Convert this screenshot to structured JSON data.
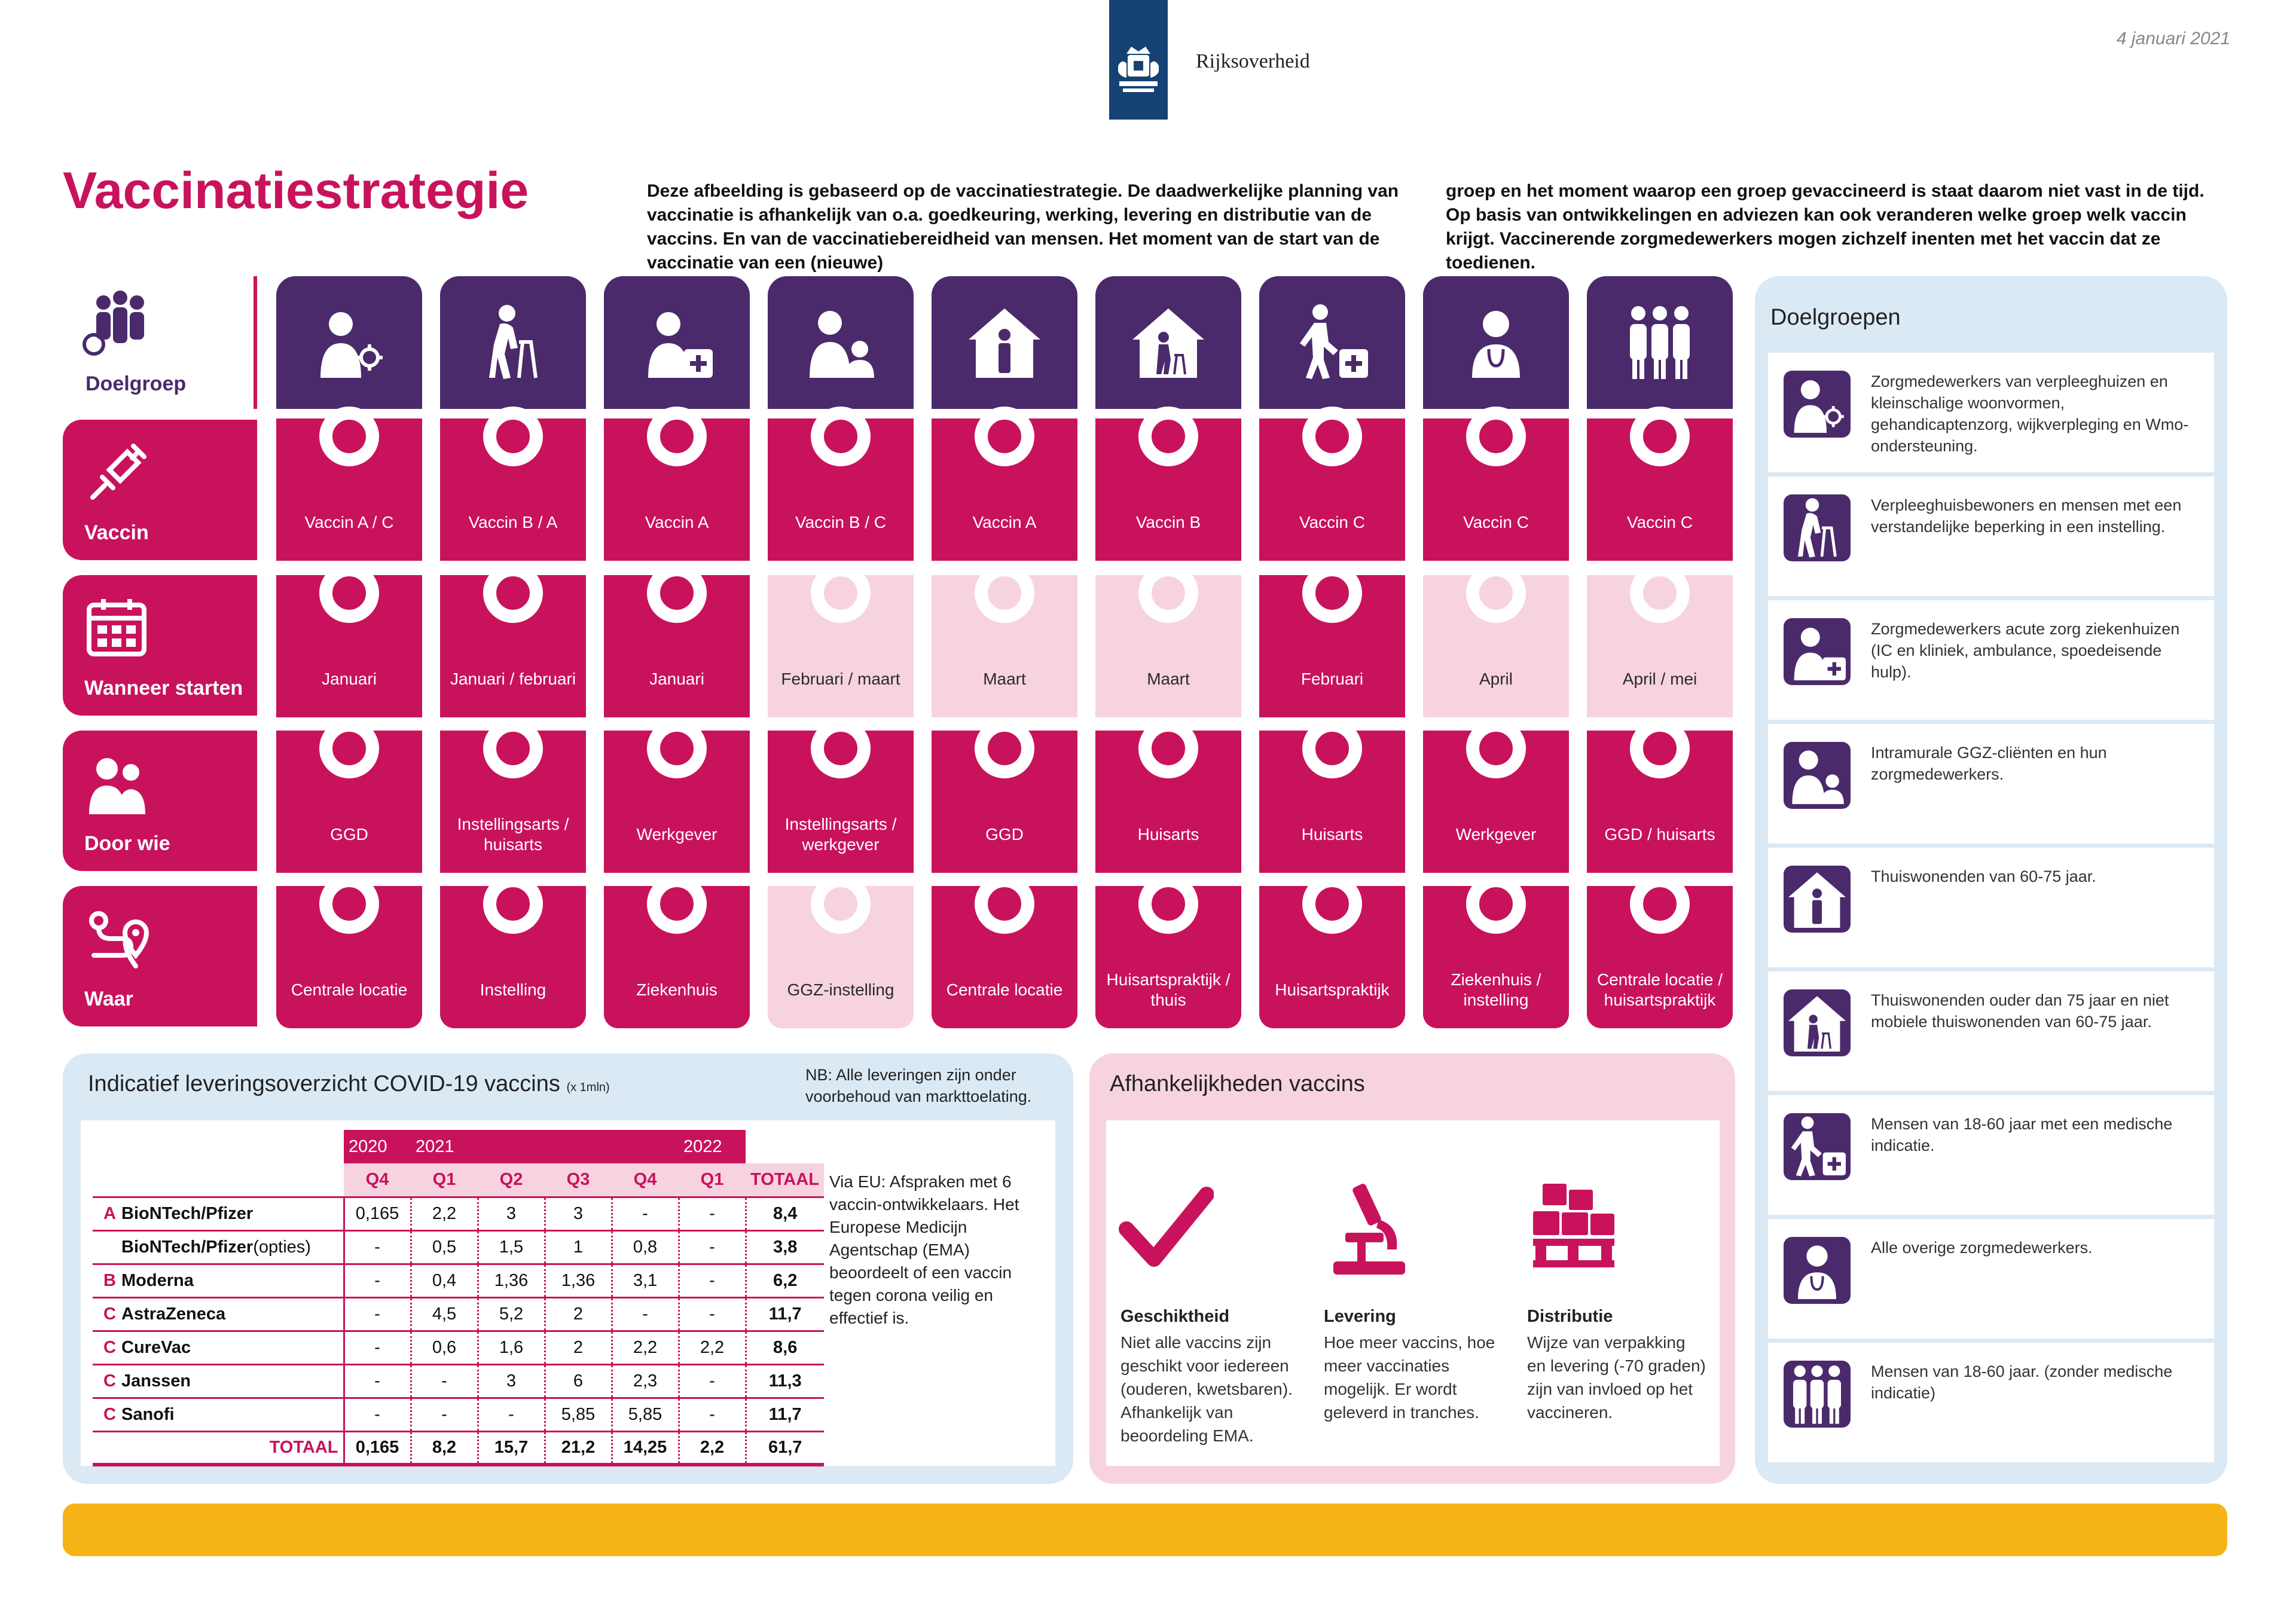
{
  "header": {
    "brand": "Rijksoverheid",
    "date": "4 januari 2021",
    "title": "Vaccinatiestrategie",
    "intro_col1": "Deze afbeelding is gebaseerd op de vaccinatiestrategie. De daadwerkelijke planning van vaccinatie is afhankelijk van o.a. goedkeuring, werking, levering en distributie van de vaccins.  En van de vaccinatiebereidheid van mensen. Het moment van de start van de vaccinatie van een (nieuwe)",
    "intro_col2": "groep en het moment waarop een groep gevaccineerd is staat daarom niet vast in de tijd. Op basis van ontwikkelingen en adviezen kan ook veranderen welke groep welk vaccin krijgt. Vaccinerende zorgmedewerkers mogen zichzelf inenten met het vaccin dat ze toedienen."
  },
  "row_labels": {
    "doelgroep": "Doelgroep",
    "vaccin": "Vaccin",
    "wanneer": "Wanneer starten",
    "doorwie": "Door wie",
    "waar": "Waar"
  },
  "grid": {
    "columns": [
      {
        "icon": "healthcare-worker-virus-icon",
        "vaccin": "Vaccin A / C",
        "wanneer": "Januari",
        "wanneer_light": false,
        "doorwie": "GGD",
        "doorwie_light": false,
        "waar": "Centrale locatie",
        "waar_light": false
      },
      {
        "icon": "elderly-walker-icon",
        "vaccin": "Vaccin B / A",
        "wanneer": "Januari / februari",
        "wanneer_light": false,
        "doorwie": "Instellingsarts / huisarts",
        "doorwie_light": false,
        "waar": "Instelling",
        "waar_light": false
      },
      {
        "icon": "healthcare-worker-plus-icon",
        "vaccin": "Vaccin A",
        "wanneer": "Januari",
        "wanneer_light": false,
        "doorwie": "Werkgever",
        "doorwie_light": false,
        "waar": "Ziekenhuis",
        "waar_light": false
      },
      {
        "icon": "caregiver-with-client-icon",
        "vaccin": "Vaccin B / C",
        "wanneer": "Februari / maart",
        "wanneer_light": true,
        "doorwie": "Instellingsarts / werkgever",
        "doorwie_light": false,
        "waar": "GGZ-instelling",
        "waar_light": true
      },
      {
        "icon": "person-in-house-icon",
        "vaccin": "Vaccin A",
        "wanneer": "Maart",
        "wanneer_light": true,
        "doorwie": "GGD",
        "doorwie_light": false,
        "waar": "Centrale locatie",
        "waar_light": false
      },
      {
        "icon": "elderly-in-house-icon",
        "vaccin": "Vaccin B",
        "wanneer": "Maart",
        "wanneer_light": true,
        "doorwie": "Huisarts",
        "doorwie_light": false,
        "waar": "Huisartspraktijk / thuis",
        "waar_light": false
      },
      {
        "icon": "person-medical-plus-icon",
        "vaccin": "Vaccin C",
        "wanneer": "Februari",
        "wanneer_light": false,
        "doorwie": "Huisarts",
        "doorwie_light": false,
        "waar": "Huisartspraktijk",
        "waar_light": false
      },
      {
        "icon": "healthcare-worker-icon",
        "vaccin": "Vaccin C",
        "wanneer": "April",
        "wanneer_light": true,
        "doorwie": "Werkgever",
        "doorwie_light": false,
        "waar": "Ziekenhuis / instelling",
        "waar_light": false
      },
      {
        "icon": "group-of-people-icon",
        "vaccin": "Vaccin C",
        "wanneer": "April / mei",
        "wanneer_light": true,
        "doorwie": "GGD / huisarts",
        "doorwie_light": false,
        "waar": "Centrale locatie / huisartspraktijk",
        "waar_light": false
      }
    ]
  },
  "sidebar": {
    "title": "Doelgroepen",
    "items": [
      {
        "icon": "healthcare-worker-virus-icon",
        "text": "Zorgmedewerkers van verpleeghuizen en kleinschalige woonvormen, gehandicaptenzorg, wijkverpleging en Wmo-ondersteuning."
      },
      {
        "icon": "elderly-walker-icon",
        "text": "Verpleeghuisbewoners en mensen met een verstandelijke beperking in een instelling."
      },
      {
        "icon": "healthcare-worker-plus-icon",
        "text": "Zorgmedewerkers acute zorg ziekenhuizen (IC en kliniek, ambulance, spoedeisende hulp)."
      },
      {
        "icon": "caregiver-with-client-icon",
        "text": "Intramurale GGZ-cliënten en hun zorgmedewerkers."
      },
      {
        "icon": "person-in-house-icon",
        "text": "Thuiswonenden van 60-75 jaar."
      },
      {
        "icon": "elderly-in-house-icon",
        "text": "Thuiswonenden ouder dan 75 jaar en niet mobiele thuiswonenden van 60-75 jaar."
      },
      {
        "icon": "person-medical-plus-icon",
        "text": "Mensen van 18-60 jaar met een medische indicatie."
      },
      {
        "icon": "healthcare-worker-icon",
        "text": "Alle overige zorgmedewerkers."
      },
      {
        "icon": "group-of-people-icon",
        "text": "Mensen van 18-60 jaar. (zonder medische indicatie)"
      }
    ]
  },
  "delivery": {
    "title": "Indicatief leveringsoverzicht COVID-19 vaccins",
    "unit": "(x 1mln)",
    "note": "NB: Alle leveringen zijn onder voorbehoud van markttoelating.",
    "via": "Via EU: Afspraken met 6 vaccin-ontwikkelaars. Het Europese Medicijn Agentschap (EMA) beoordeelt of een vaccin tegen corona veilig en effectief is.",
    "years": [
      "2020",
      "2021",
      "2022"
    ],
    "quarters": [
      "Q4",
      "Q1",
      "Q2",
      "Q3",
      "Q4",
      "Q1"
    ],
    "total_label": "TOTAAL",
    "rows": [
      {
        "group": "A",
        "name": "BioNTech/Pfizer",
        "extra": "",
        "values": [
          "0,165",
          "2,2",
          "3",
          "3",
          "-",
          "-"
        ],
        "total": "8,4"
      },
      {
        "group": "",
        "name": "BioNTech/Pfizer",
        "extra": "(opties)",
        "values": [
          "-",
          "0,5",
          "1,5",
          "1",
          "0,8",
          "-"
        ],
        "total": "3,8"
      },
      {
        "group": "B",
        "name": "Moderna",
        "extra": "",
        "values": [
          "-",
          "0,4",
          "1,36",
          "1,36",
          "3,1",
          "-"
        ],
        "total": "6,2"
      },
      {
        "group": "C",
        "name": "AstraZeneca",
        "extra": "",
        "values": [
          "-",
          "4,5",
          "5,2",
          "2",
          "-",
          "-"
        ],
        "total": "11,7"
      },
      {
        "group": "C",
        "name": "CureVac",
        "extra": "",
        "values": [
          "-",
          "0,6",
          "1,6",
          "2",
          "2,2",
          "2,2"
        ],
        "total": "8,6"
      },
      {
        "group": "C",
        "name": "Janssen",
        "extra": "",
        "values": [
          "-",
          "-",
          "3",
          "6",
          "2,3",
          "-"
        ],
        "total": "11,3"
      },
      {
        "group": "C",
        "name": "Sanofi",
        "extra": "",
        "values": [
          "-",
          "-",
          "-",
          "5,85",
          "5,85",
          "-"
        ],
        "total": "11,7"
      }
    ],
    "totals": {
      "label": "TOTAAL",
      "values": [
        "0,165",
        "8,2",
        "15,7",
        "21,2",
        "14,25",
        "2,2"
      ],
      "total": "61,7"
    }
  },
  "dependencies": {
    "title": "Afhankelijkheden vaccins",
    "items": [
      {
        "icon": "checkmark-icon",
        "heading": "Geschiktheid",
        "text": "Niet alle vaccins zijn geschikt voor iedereen (ouderen, kwetsbaren). Afhankelijk van beoordeling EMA."
      },
      {
        "icon": "microscope-icon",
        "heading": "Levering",
        "text": "Hoe meer vaccins, hoe meer vaccinaties mogelijk. Er wordt geleverd in tranches."
      },
      {
        "icon": "pallet-boxes-icon",
        "heading": "Distributie",
        "text": "Wijze van verpakking en levering (-70 graden) zijn van invloed op het vaccineren."
      }
    ]
  },
  "colors": {
    "magenta": "#c9125c",
    "purple": "#4a2a6b",
    "light_pink": "#f7d3e0",
    "light_blue": "#dbe9f5",
    "yellow": "#f5b316",
    "navy": "#154273"
  }
}
